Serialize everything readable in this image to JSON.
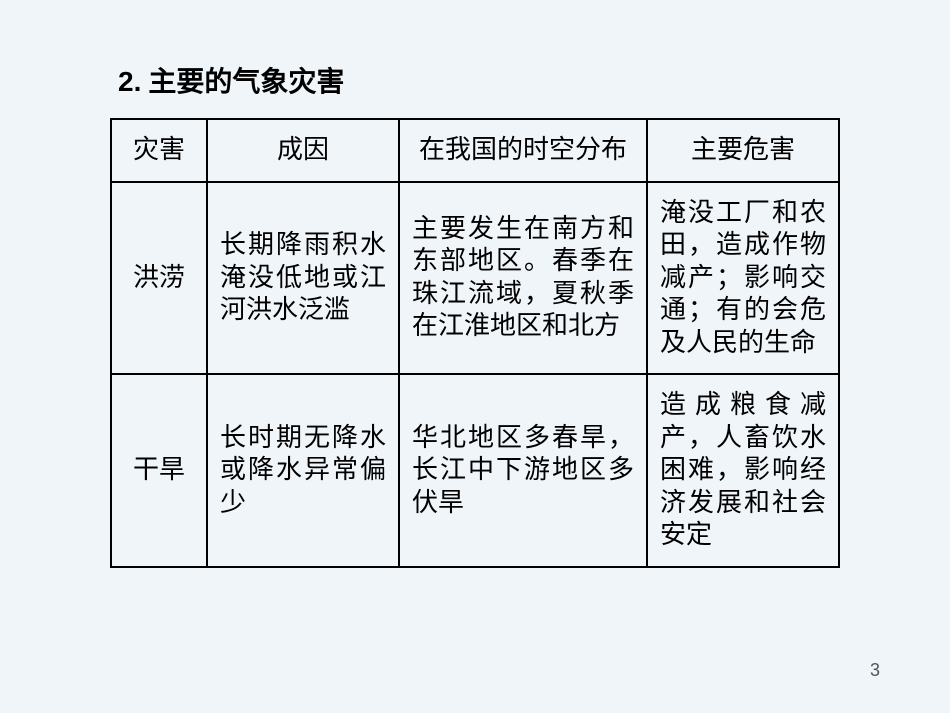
{
  "heading_num": "2.",
  "heading_text": "主要的气象灾害",
  "table": {
    "headers": [
      "灾害",
      "成因",
      "在我国的时空分布",
      "主要危害"
    ],
    "rows": [
      {
        "name": "洪涝",
        "cause": "长期降雨积水淹没低地或江河洪水泛滥",
        "distribution": "主要发生在南方和东部地区。春季在珠江流域，夏秋季在江淮地区和北方",
        "harm": "淹没工厂和农田，造成作物减产；影响交通；有的会危及人民的生命"
      },
      {
        "name": "干旱",
        "cause": "长时期无降水或降水异常偏少",
        "distribution": "华北地区多春旱，长江中下游地区多伏旱",
        "harm": "造成粮食减产，人畜饮水困难，影响经济发展和社会安定"
      }
    ]
  },
  "page_number": "3",
  "colors": {
    "background": "#f0f5fa",
    "text": "#000000",
    "border": "#000000",
    "page_num": "#555555"
  },
  "fonts": {
    "heading_size": 28,
    "cell_size": 26,
    "page_num_size": 18
  }
}
